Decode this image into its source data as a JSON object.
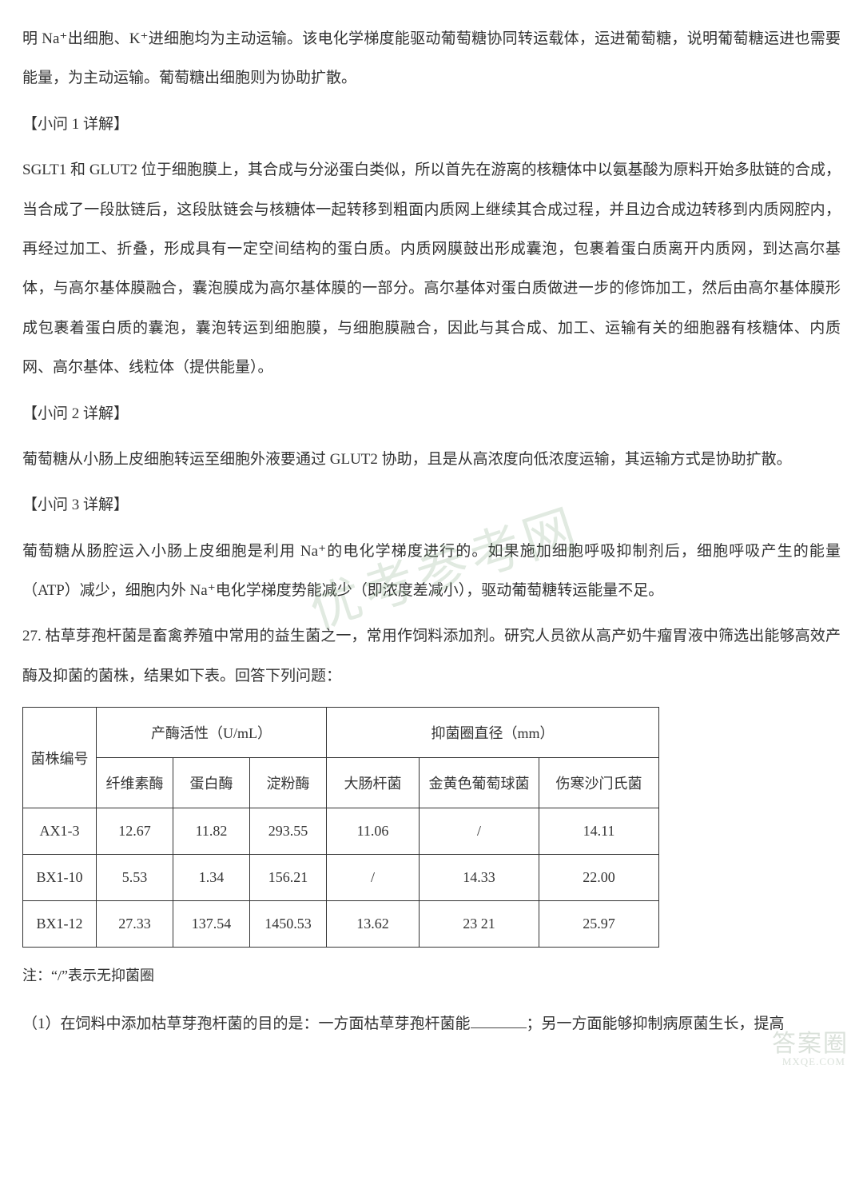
{
  "paragraphs": {
    "p0": "明 Na⁺出细胞、K⁺进细胞均为主动运输。该电化学梯度能驱动葡萄糖协同转运载体，运进葡萄糖，说明葡萄糖运进也需要能量，为主动运输。葡萄糖出细胞则为协助扩散。",
    "h1": "【小问 1 详解】",
    "p1": "SGLT1 和 GLUT2 位于细胞膜上，其合成与分泌蛋白类似，所以首先在游离的核糖体中以氨基酸为原料开始多肽链的合成，当合成了一段肽链后，这段肽链会与核糖体一起转移到粗面内质网上继续其合成过程，并且边合成边转移到内质网腔内，再经过加工、折叠，形成具有一定空间结构的蛋白质。内质网膜鼓出形成囊泡，包裹着蛋白质离开内质网，到达高尔基体，与高尔基体膜融合，囊泡膜成为高尔基体膜的一部分。高尔基体对蛋白质做进一步的修饰加工，然后由高尔基体膜形成包裹着蛋白质的囊泡，囊泡转运到细胞膜，与细胞膜融合，因此与其合成、加工、运输有关的细胞器有核糖体、内质网、高尔基体、线粒体（提供能量）。",
    "h2": "【小问 2 详解】",
    "p2": "葡萄糖从小肠上皮细胞转运至细胞外液要通过 GLUT2 协助，且是从高浓度向低浓度运输，其运输方式是协助扩散。",
    "h3": "【小问 3 详解】",
    "p3": "葡萄糖从肠腔运入小肠上皮细胞是利用 Na⁺的电化学梯度进行的。如果施加细胞呼吸抑制剂后，细胞呼吸产生的能量（ATP）减少，细胞内外 Na⁺电化学梯度势能减少（即浓度差减小），驱动葡萄糖转运能量不足。",
    "q27": "27. 枯草芽孢杆菌是畜禽养殖中常用的益生菌之一，常用作饲料添加剂。研究人员欲从高产奶牛瘤胃液中筛选出能够高效产酶及抑菌的菌株，结果如下表。回答下列问题：",
    "note": "注：“/”表示无抑菌圈",
    "q27_1a": "（1）在饲料中添加枯草芽孢杆菌的目的是：一方面枯草芽孢杆菌能",
    "q27_1b": "；另一方面能够抑制病原菌生长，提高"
  },
  "table": {
    "header": {
      "strain": "菌株编号",
      "enzyme_group": "产酶活性（U/mL）",
      "inhib_group": "抑菌圈直径（mm）",
      "cols": {
        "c1": "纤维素酶",
        "c2": "蛋白酶",
        "c3": "淀粉酶",
        "c4": "大肠杆菌",
        "c5": "金黄色葡萄球菌",
        "c6": "伤寒沙门氏菌"
      }
    },
    "rows": [
      {
        "id": "AX1-3",
        "v": [
          "12.67",
          "11.82",
          "293.55",
          "11.06",
          "/",
          "14.11"
        ]
      },
      {
        "id": "BX1-10",
        "v": [
          "5.53",
          "1.34",
          "156.21",
          "/",
          "14.33",
          "22.00"
        ]
      },
      {
        "id": "BX1-12",
        "v": [
          "27.33",
          "137.54",
          "1450.53",
          "13.62",
          "23 21",
          "25.97"
        ]
      }
    ]
  },
  "watermark": {
    "center": "优考参考网",
    "corner": "答案圈",
    "url": "MXQE.COM"
  },
  "style": {
    "page_bg": "#ffffff",
    "text_color": "#333333",
    "border_color": "#333333",
    "font_size_body": 19,
    "font_size_table": 18,
    "line_height": 2.6,
    "watermark_color": "rgba(120,160,120,0.22)"
  }
}
